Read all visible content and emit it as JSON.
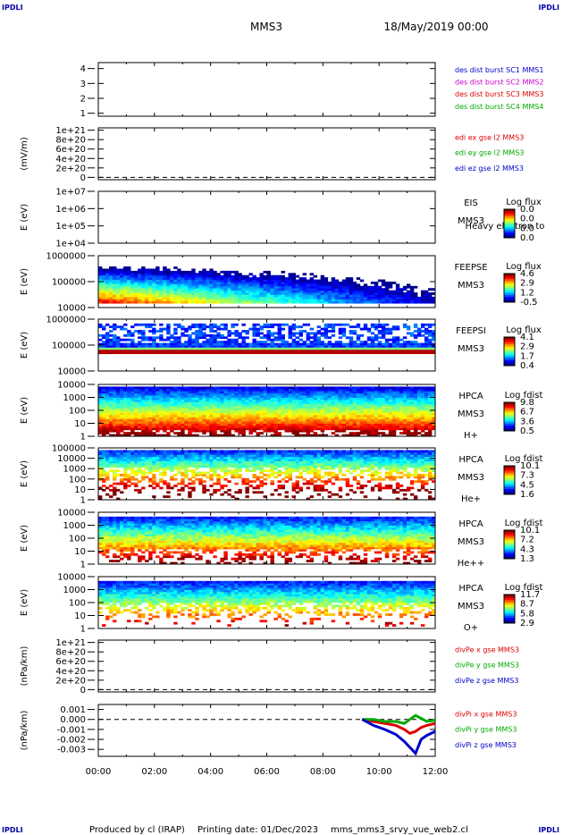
{
  "corner_tag": "IPDLI",
  "header": {
    "mission": "MMS3",
    "date": "18/May/2019 00:00"
  },
  "footer": {
    "produced_by": "Produced by cl (IRAP)",
    "printing_date": "Printing date: 01/Dec/2023",
    "file": "mms_mms3_srvy_vue_web2.cl"
  },
  "x_ticks": [
    "00:00",
    "02:00",
    "04:00",
    "06:00",
    "08:00",
    "10:00",
    "12:00"
  ],
  "colors": {
    "frame": "#000000",
    "spec_bg": "#ffffff",
    "dashed": "#000000"
  },
  "chart_data": [
    {
      "type": "line",
      "id": "des-burst",
      "ylabel": "",
      "yticks": [
        "1",
        "2",
        "3",
        "4"
      ],
      "ylim": [
        0.8,
        4.4
      ],
      "legend": [
        {
          "label": "des dist burst SC1 MMS1",
          "color": "#0000cc"
        },
        {
          "label": "des dist burst SC2 MMS2",
          "color": "#cc00cc"
        },
        {
          "label": "des dist burst SC3 MMS3",
          "color": "#dd0000"
        },
        {
          "label": "des dist burst SC4 MMS4",
          "color": "#00aa00"
        }
      ]
    },
    {
      "type": "line",
      "id": "edi-e",
      "ylabel": "(mV/m)",
      "yticks": [
        "0",
        "2e+20",
        "4e+20",
        "6e+20",
        "8e+20",
        "1e+21"
      ],
      "ylim": [
        -5e+19,
        1.05e+21
      ],
      "dashed_zero": true,
      "legend": [
        {
          "label": "edi ex gse l2 MMS3",
          "color": "#dd0000"
        },
        {
          "label": "edi ey gse l2 MMS3",
          "color": "#00aa00"
        },
        {
          "label": "edi ez gse l2 MMS3",
          "color": "#0000cc"
        }
      ]
    },
    {
      "type": "heatmap",
      "id": "eis",
      "ylabel": "E (eV)",
      "yticks": [
        "1e+04",
        "1e+05",
        "1e+06",
        "1e+07"
      ],
      "log": true,
      "labels": [
        "EIS",
        "MMS3"
      ],
      "overlay_text": "Heavy electron to",
      "cbar_title": "Log flux",
      "cbar_ticks": [
        "0.0",
        "0.0",
        "0.0",
        "0.0"
      ]
    },
    {
      "type": "heatmap",
      "id": "feeps-e",
      "ylabel": "E (eV)",
      "yticks": [
        "10000",
        "100000",
        "1000000"
      ],
      "log": true,
      "labels": [
        "FEEPSE",
        "MMS3"
      ],
      "cbar_title": "Log flux",
      "cbar_ticks": [
        "4.6",
        "2.9",
        "1.2",
        "-0.5"
      ],
      "range": [
        -0.5,
        4.6
      ]
    },
    {
      "type": "heatmap",
      "id": "feeps-i",
      "ylabel": "E (eV)",
      "yticks": [
        "10000",
        "100000",
        "1000000"
      ],
      "log": true,
      "labels": [
        "FEEPSI",
        "MMS3"
      ],
      "cbar_title": "Log flux",
      "cbar_ticks": [
        "4.1",
        "2.9",
        "1.7",
        "0.4"
      ],
      "range": [
        0.4,
        4.1
      ]
    },
    {
      "type": "heatmap",
      "id": "hpca-h",
      "ylabel": "E (eV)",
      "yticks": [
        "1",
        "10",
        "100",
        "1000",
        "10000"
      ],
      "log": true,
      "labels": [
        "HPCA",
        "MMS3",
        "H+"
      ],
      "cbar_title": "Log fdist",
      "cbar_ticks": [
        "9.8",
        "6.7",
        "3.6",
        "0.5"
      ],
      "range": [
        0.5,
        9.8
      ]
    },
    {
      "type": "heatmap",
      "id": "hpca-he",
      "ylabel": "E (eV)",
      "yticks": [
        "1",
        "10",
        "100",
        "1000",
        "10000",
        "100000"
      ],
      "log": true,
      "labels": [
        "HPCA",
        "MMS3",
        "He+"
      ],
      "cbar_title": "Log fdist",
      "cbar_ticks": [
        "10.1",
        "7.3",
        "4.5",
        "1.6"
      ],
      "range": [
        1.6,
        10.1
      ]
    },
    {
      "type": "heatmap",
      "id": "hpca-hepp",
      "ylabel": "E (eV)",
      "yticks": [
        "1",
        "10",
        "100",
        "1000",
        "10000"
      ],
      "log": true,
      "labels": [
        "HPCA",
        "MMS3",
        "He++"
      ],
      "cbar_title": "Log fdist",
      "cbar_ticks": [
        "10.1",
        "7.2",
        "4.3",
        "1.3"
      ],
      "range": [
        1.3,
        10.1
      ]
    },
    {
      "type": "heatmap",
      "id": "hpca-o",
      "ylabel": "E (eV)",
      "yticks": [
        "1",
        "10",
        "100",
        "1000",
        "10000"
      ],
      "log": true,
      "labels": [
        "HPCA",
        "MMS3",
        "O+"
      ],
      "cbar_title": "Log fdist",
      "cbar_ticks": [
        "11.7",
        "8.7",
        "5.8",
        "2.9"
      ],
      "range": [
        2.9,
        11.7
      ]
    },
    {
      "type": "line",
      "id": "divpe",
      "ylabel": "(nPa/km)",
      "yticks": [
        "0",
        "2e+20",
        "4e+20",
        "6e+20",
        "8e+20",
        "1e+21"
      ],
      "ylim": [
        -5e+19,
        1.05e+21
      ],
      "dashed_zero": true,
      "legend": [
        {
          "label": "divPe x gse MMS3",
          "color": "#dd0000"
        },
        {
          "label": "divPe y gse MMS3",
          "color": "#00aa00"
        },
        {
          "label": "divPe z gse MMS3",
          "color": "#0000cc"
        }
      ]
    },
    {
      "type": "line",
      "id": "divpi",
      "ylabel": "(nPa/km)",
      "yticks": [
        "-0.003",
        "-0.002",
        "-0.001",
        "0.000",
        "0.001"
      ],
      "ylim": [
        -0.0037,
        0.0015
      ],
      "dashed_zero": true,
      "legend": [
        {
          "label": "divPi x gse MMS3",
          "color": "#dd0000"
        },
        {
          "label": "divPi y gse MMS3",
          "color": "#00aa00"
        },
        {
          "label": "divPi z gse MMS3",
          "color": "#0000cc"
        }
      ],
      "series": [
        {
          "name": "divPi x gse MMS3",
          "color": "#dd0000",
          "x": [
            9.4,
            9.8,
            10.2,
            10.6,
            10.9,
            11.1,
            11.3,
            11.5,
            11.7,
            12.0
          ],
          "values": [
            0.0,
            -0.0002,
            -0.0004,
            -0.0006,
            -0.001,
            -0.0014,
            -0.0012,
            -0.0008,
            -0.0006,
            -0.0004
          ]
        },
        {
          "name": "divPi y gse MMS3",
          "color": "#00aa00",
          "x": [
            9.4,
            9.8,
            10.2,
            10.6,
            10.9,
            11.1,
            11.3,
            11.5,
            11.7,
            12.0
          ],
          "values": [
            0.0,
            0.0,
            -0.0002,
            -0.0002,
            -0.0004,
            0.0,
            0.0004,
            0.0001,
            -0.0002,
            -0.0001
          ]
        },
        {
          "name": "divPi z gse MMS3",
          "color": "#0000cc",
          "x": [
            9.4,
            9.8,
            10.2,
            10.6,
            10.9,
            11.1,
            11.3,
            11.5,
            11.7,
            12.0
          ],
          "values": [
            0.0,
            -0.0006,
            -0.001,
            -0.0015,
            -0.0022,
            -0.0028,
            -0.0034,
            -0.002,
            -0.0016,
            -0.0012
          ]
        }
      ]
    }
  ]
}
